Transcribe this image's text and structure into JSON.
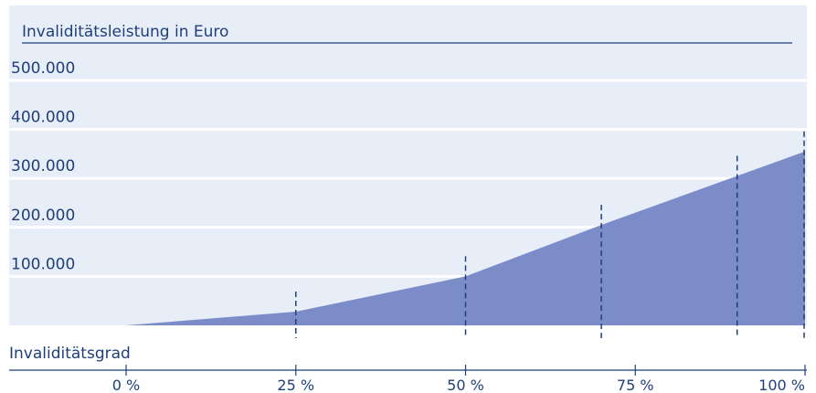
{
  "chart_data": {
    "type": "area",
    "title": "Invaliditätsleistung in Euro",
    "xlabel": "Invaliditätsgrad",
    "ylabel": "",
    "x": [
      0,
      25,
      50,
      70,
      90,
      100
    ],
    "series": [
      {
        "values": [
          0,
          28000,
          100000,
          205000,
          305000,
          355000
        ]
      }
    ],
    "xlim": [
      0,
      100
    ],
    "ylim": [
      0,
      500000
    ],
    "y_ticks": [
      100000,
      200000,
      300000,
      400000,
      500000
    ],
    "y_tick_labels": [
      "100.000",
      "200.000",
      "300.000",
      "400.000",
      "500.000"
    ],
    "x_ticks": [
      0,
      25,
      50,
      75,
      100
    ],
    "x_tick_labels": [
      "0 %",
      "25 %",
      "50 %",
      "75 %",
      "100 %"
    ],
    "markers": [
      25,
      50,
      70,
      90,
      100
    ],
    "grid": true,
    "legend": "none",
    "colors": {
      "background": "#e8eef8",
      "area": "#7b8cc8",
      "text": "#1f3f7a",
      "grid": "#ffffff"
    }
  }
}
